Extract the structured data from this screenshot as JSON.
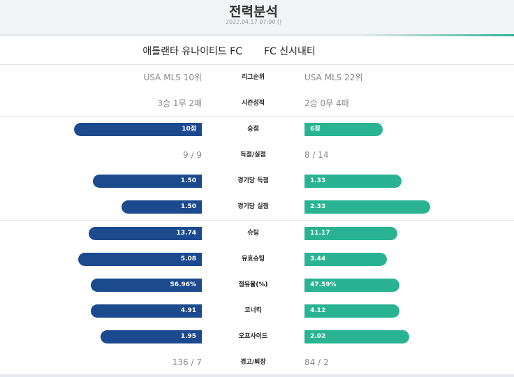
{
  "header": {
    "title": "전력분석",
    "datetime": "2022.04.17 07:00 ()"
  },
  "teams": {
    "home": "애틀랜타 유나이티드 FC",
    "away": "FC 신시내티"
  },
  "colors": {
    "home_bar": "#1c4a8f",
    "away_bar": "#2ab393",
    "accent": "#2ab393"
  },
  "stats": {
    "league_rank": {
      "label": "리그순위",
      "home": "USA MLS 10위",
      "away": "USA MLS 22위"
    },
    "season_record": {
      "label": "시즌성적",
      "home": "3승 1무 2패",
      "away": "2승 0무 4패"
    },
    "points": {
      "label": "승점",
      "home": "10점",
      "away": "6점",
      "home_ratio": 0.62,
      "away_ratio": 0.38
    },
    "goals": {
      "label": "득점/실점",
      "home": "9 / 9",
      "away": "8 / 14"
    },
    "goals_per_game": {
      "label": "경기당 득점",
      "home": "1.50",
      "away": "1.33",
      "home_ratio": 0.53,
      "away_ratio": 0.47
    },
    "conceded_per_game": {
      "label": "경기당 실점",
      "home": "1.50",
      "away": "2.33",
      "home_ratio": 0.39,
      "away_ratio": 0.61
    },
    "shots": {
      "label": "슈팅",
      "home": "13.74",
      "away": "11.17",
      "home_ratio": 0.55,
      "away_ratio": 0.45
    },
    "shots_on_target": {
      "label": "유효슈팅",
      "home": "5.08",
      "away": "3.44",
      "home_ratio": 0.6,
      "away_ratio": 0.4
    },
    "possession": {
      "label": "점유율(%)",
      "home": "56.96%",
      "away": "47.59%",
      "home_ratio": 0.54,
      "away_ratio": 0.46
    },
    "corners": {
      "label": "코너킥",
      "home": "4.91",
      "away": "4.12",
      "home_ratio": 0.54,
      "away_ratio": 0.46
    },
    "offsides": {
      "label": "오프사이드",
      "home": "1.95",
      "away": "2.02",
      "home_ratio": 0.49,
      "away_ratio": 0.51
    },
    "cards": {
      "label": "경고/퇴장",
      "home": "136 / 7",
      "away": "84 / 2"
    }
  }
}
